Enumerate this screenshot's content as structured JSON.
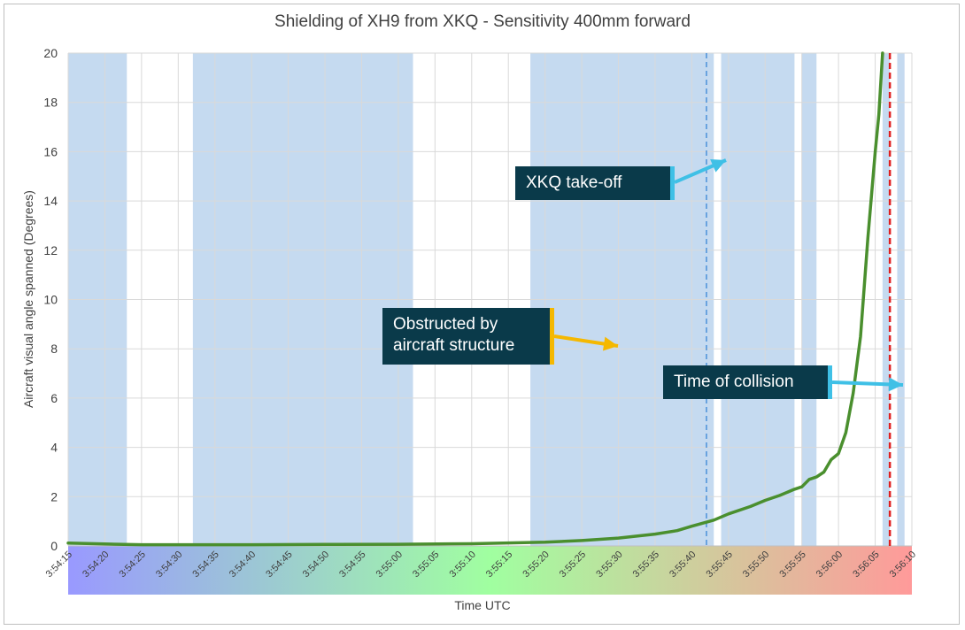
{
  "chart_data": {
    "type": "line",
    "title": "Shielding of XH9 from XKQ - Sensitivity 400mm forward",
    "xlabel": "Time UTC",
    "ylabel": "Aircraft visual angle spanned (Degrees)",
    "xlim": [
      "3:54:15",
      "3:56:10"
    ],
    "ylim": [
      0,
      20
    ],
    "y_ticks": [
      0,
      2,
      4,
      6,
      8,
      10,
      12,
      14,
      16,
      18,
      20
    ],
    "x_ticks": [
      "3:54:15",
      "3:54:20",
      "3:54:25",
      "3:54:30",
      "3:54:35",
      "3:54:40",
      "3:54:45",
      "3:54:50",
      "3:54:55",
      "3:55:00",
      "3:55:05",
      "3:55:10",
      "3:55:15",
      "3:55:20",
      "3:55:25",
      "3:55:30",
      "3:55:35",
      "3:55:40",
      "3:55:45",
      "3:55:50",
      "3:55:55",
      "3:56:00",
      "3:56:05",
      "3:56:10"
    ],
    "grid": true,
    "legend": "none",
    "x_axis_gradient": [
      "#9999ff",
      "#a0ffa0",
      "#ff9a9a"
    ],
    "series": [
      {
        "color": "#4a8f2e",
        "x": [
          "3:54:15",
          "3:54:20",
          "3:54:25",
          "3:54:30",
          "3:54:40",
          "3:54:50",
          "3:55:00",
          "3:55:10",
          "3:55:20",
          "3:55:25",
          "3:55:30",
          "3:55:35",
          "3:55:38",
          "3:55:40",
          "3:55:43",
          "3:55:45",
          "3:55:48",
          "3:55:50",
          "3:55:52",
          "3:55:54",
          "3:55:55",
          "3:55:56",
          "3:55:57",
          "3:55:58",
          "3:55:59",
          "3:56:00",
          "3:56:01",
          "3:56:02",
          "3:56:03",
          "3:56:04",
          "3:56:05",
          "3:56:05.5",
          "3:56:06"
        ],
        "y": [
          0.12,
          0.08,
          0.05,
          0.05,
          0.05,
          0.06,
          0.07,
          0.09,
          0.15,
          0.22,
          0.32,
          0.48,
          0.62,
          0.8,
          1.05,
          1.3,
          1.6,
          1.85,
          2.05,
          2.3,
          2.4,
          2.7,
          2.8,
          3.0,
          3.5,
          3.75,
          4.6,
          6.2,
          8.5,
          12.5,
          16.0,
          17.5,
          20.0
        ]
      }
    ],
    "obstructed_intervals": [
      [
        "3:54:15",
        "3:54:23"
      ],
      [
        "3:54:32",
        "3:55:02"
      ],
      [
        "3:55:18",
        "3:55:43"
      ],
      [
        "3:55:44",
        "3:55:54"
      ],
      [
        "3:55:55",
        "3:55:57"
      ],
      [
        "3:56:06",
        "3:56:07"
      ],
      [
        "3:56:08",
        "3:56:09"
      ]
    ],
    "reference_lines": [
      {
        "x": "3:55:42",
        "color": "#4a90d9",
        "style": "dashed"
      },
      {
        "x": "3:56:07",
        "color": "#e02020",
        "style": "dashed"
      }
    ],
    "annotations": [
      {
        "text": "XKQ take-off",
        "accent": "#3fc0e6"
      },
      {
        "text": "Obstructed by aircraft structure",
        "lines": [
          "Obstructed by",
          "aircraft structure"
        ],
        "accent": "#f5b800"
      },
      {
        "text": "Time of collision",
        "accent": "#3fc0e6"
      }
    ],
    "colors": {
      "obstructed_fill": "#c5daf0",
      "callout_bg": "#0a3a4a"
    }
  }
}
